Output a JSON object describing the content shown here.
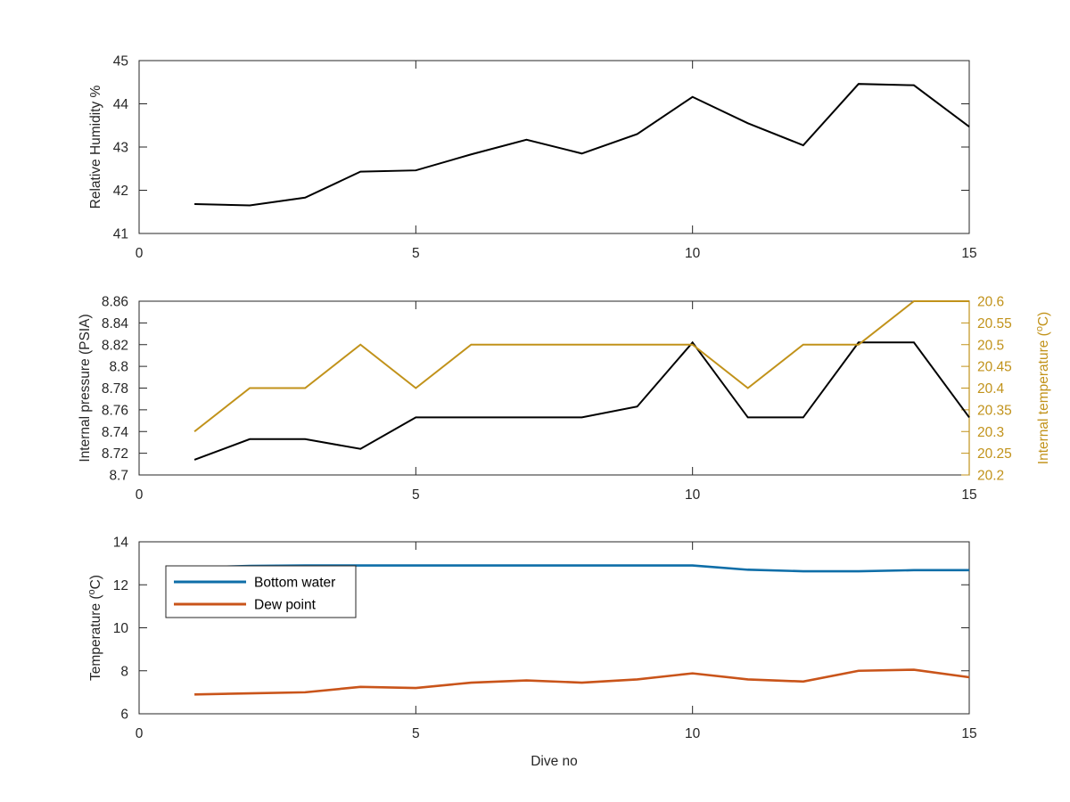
{
  "figure": {
    "shared_xlabel": "Dive no"
  },
  "chart_data": [
    {
      "type": "line",
      "title": "",
      "xlabel": "",
      "ylabel": "Relative Humidity %",
      "xlim": [
        0,
        15
      ],
      "ylim": [
        41,
        45
      ],
      "xticks": [
        0,
        5,
        10,
        15
      ],
      "yticks": [
        41,
        42,
        43,
        44,
        45
      ],
      "x": [
        1,
        2,
        3,
        4,
        5,
        6,
        7,
        8,
        9,
        10,
        11,
        12,
        13,
        14,
        15
      ],
      "series": [
        {
          "name": "",
          "color": "#000000",
          "values": [
            41.68,
            41.65,
            41.83,
            42.43,
            42.46,
            42.83,
            43.17,
            42.85,
            43.3,
            44.16,
            43.55,
            43.04,
            44.46,
            44.43,
            43.47
          ]
        }
      ],
      "legend": null,
      "grid": false
    },
    {
      "type": "line",
      "title": "",
      "xlabel": "",
      "ylabel": "Internal pressure (PSIA)",
      "ylabel_right": "Internal temperature (°C)",
      "xlim": [
        0,
        15
      ],
      "ylim": [
        8.7,
        8.86
      ],
      "ylim_right": [
        20.2,
        20.6
      ],
      "xticks": [
        0,
        5,
        10,
        15
      ],
      "yticks": [
        "8.7",
        "8.72",
        "8.74",
        "8.76",
        "8.78",
        "8.8",
        "8.82",
        "8.84",
        "8.86"
      ],
      "yticks_right": [
        "20.2",
        "20.25",
        "20.3",
        "20.35",
        "20.4",
        "20.45",
        "20.5",
        "20.55",
        "20.6"
      ],
      "x": [
        1,
        2,
        3,
        4,
        5,
        6,
        7,
        8,
        9,
        10,
        11,
        12,
        13,
        14,
        15
      ],
      "series": [
        {
          "name": "",
          "axis": "left",
          "color": "#000000",
          "values": [
            8.714,
            8.733,
            8.733,
            8.724,
            8.753,
            8.753,
            8.753,
            8.753,
            8.763,
            8.822,
            8.753,
            8.753,
            8.822,
            8.822,
            8.753
          ]
        },
        {
          "name": "",
          "axis": "right",
          "color": "#C1921A",
          "values": [
            20.3,
            20.4,
            20.4,
            20.5,
            20.4,
            20.5,
            20.5,
            20.5,
            20.5,
            20.5,
            20.4,
            20.5,
            20.5,
            20.6,
            20.6
          ]
        }
      ],
      "right_axis_color": "#C1921A",
      "legend": null,
      "grid": false
    },
    {
      "type": "line",
      "title": "",
      "xlabel": "Dive no",
      "ylabel": "Temperature (°C)",
      "xlim": [
        0,
        15
      ],
      "ylim": [
        6,
        14
      ],
      "xticks": [
        0,
        5,
        10,
        15
      ],
      "yticks": [
        6,
        8,
        10,
        12,
        14
      ],
      "x": [
        1,
        2,
        3,
        4,
        5,
        6,
        7,
        8,
        9,
        10,
        11,
        12,
        13,
        14,
        15
      ],
      "series": [
        {
          "name": "Bottom water",
          "color": "#0E6EA8",
          "values": [
            12.8,
            12.88,
            12.9,
            12.9,
            12.9,
            12.9,
            12.9,
            12.9,
            12.9,
            12.9,
            12.7,
            12.63,
            12.63,
            12.68,
            12.68
          ]
        },
        {
          "name": "Dew point",
          "color": "#C9541A",
          "values": [
            6.9,
            6.95,
            7.0,
            7.25,
            7.2,
            7.45,
            7.55,
            7.45,
            7.6,
            7.88,
            7.6,
            7.5,
            8.0,
            8.05,
            7.7
          ]
        }
      ],
      "legend": "top-left",
      "grid": false
    }
  ]
}
